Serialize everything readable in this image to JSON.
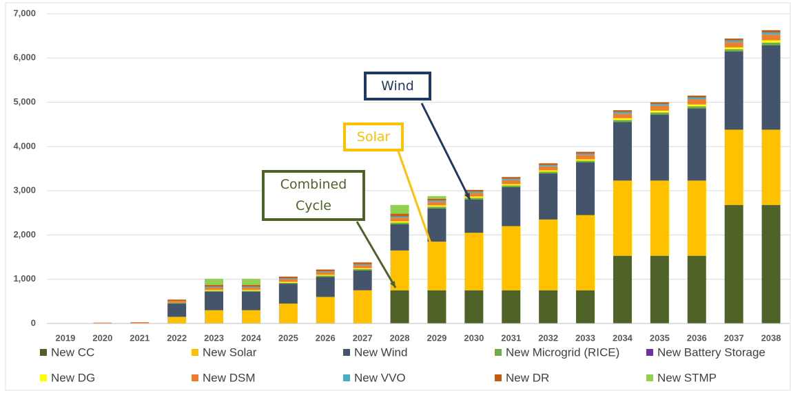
{
  "chart_data": {
    "type": "bar",
    "stacked": true,
    "categories": [
      "2019",
      "2020",
      "2021",
      "2022",
      "2023",
      "2024",
      "2025",
      "2026",
      "2027",
      "2028",
      "2029",
      "2030",
      "2031",
      "2032",
      "2033",
      "2034",
      "2035",
      "2036",
      "2037",
      "2038"
    ],
    "series": [
      {
        "name": "New CC",
        "color": "#4f6228",
        "values": [
          0,
          0,
          0,
          0,
          0,
          0,
          0,
          0,
          0,
          750,
          750,
          750,
          750,
          750,
          750,
          1530,
          1530,
          1530,
          2680,
          2680
        ]
      },
      {
        "name": "New Solar",
        "color": "#ffc000",
        "values": [
          0,
          0,
          0,
          150,
          300,
          300,
          450,
          600,
          750,
          900,
          1100,
          1300,
          1450,
          1600,
          1700,
          1700,
          1700,
          1700,
          1700,
          1700
        ]
      },
      {
        "name": "New Wind",
        "color": "#44546a",
        "values": [
          0,
          0,
          0,
          300,
          420,
          420,
          450,
          450,
          450,
          590,
          750,
          750,
          880,
          1040,
          1190,
          1320,
          1490,
          1630,
          1770,
          1910
        ]
      },
      {
        "name": "New Microgrid (RICE)",
        "color": "#70ad47",
        "values": [
          0,
          0,
          0,
          20,
          20,
          20,
          20,
          30,
          30,
          40,
          40,
          40,
          40,
          40,
          40,
          50,
          50,
          50,
          50,
          60
        ]
      },
      {
        "name": "New Battery Storage",
        "color": "#7030a0",
        "values": [
          0,
          0,
          0,
          0,
          0,
          0,
          0,
          0,
          0,
          0,
          0,
          0,
          0,
          0,
          0,
          0,
          0,
          0,
          0,
          0
        ]
      },
      {
        "name": "New DG",
        "color": "#ffff00",
        "values": [
          0,
          0,
          0,
          0,
          20,
          20,
          20,
          20,
          20,
          30,
          30,
          30,
          30,
          30,
          30,
          40,
          40,
          40,
          40,
          50
        ]
      },
      {
        "name": "New DSM",
        "color": "#ed7d31",
        "values": [
          0,
          20,
          30,
          40,
          50,
          50,
          60,
          60,
          70,
          80,
          80,
          80,
          90,
          90,
          100,
          100,
          110,
          120,
          120,
          130
        ]
      },
      {
        "name": "New VVO",
        "color": "#4bacc6",
        "values": [
          0,
          0,
          0,
          0,
          20,
          20,
          20,
          20,
          20,
          30,
          30,
          30,
          30,
          30,
          30,
          40,
          40,
          40,
          40,
          50
        ]
      },
      {
        "name": "New DR",
        "color": "#c55a11",
        "values": [
          0,
          0,
          0,
          30,
          40,
          40,
          40,
          40,
          40,
          60,
          40,
          40,
          40,
          40,
          40,
          40,
          40,
          40,
          40,
          50
        ]
      },
      {
        "name": "New STMP",
        "color": "#92d050",
        "values": [
          0,
          0,
          0,
          0,
          140,
          140,
          0,
          0,
          0,
          200,
          60,
          0,
          0,
          0,
          0,
          0,
          0,
          0,
          0,
          0
        ]
      }
    ],
    "ylim": [
      0,
      7000
    ],
    "yticks": [
      0,
      {
        "value": 1000,
        "label": "1,000"
      },
      {
        "value": 2000,
        "label": "2,000"
      },
      {
        "value": 3000,
        "label": "3,000"
      },
      {
        "value": 4000,
        "label": "4,000"
      },
      {
        "value": 5000,
        "label": "5,000"
      },
      {
        "value": 6000,
        "label": "6,000"
      },
      {
        "value": 7000,
        "label": "7,000"
      }
    ],
    "grid": true,
    "annotations": [
      {
        "text": "Wind",
        "color": "#1f3864"
      },
      {
        "text": "Solar",
        "color": "#ffc000"
      },
      {
        "text": "Combined Cycle",
        "color": "#4f6228"
      }
    ]
  }
}
